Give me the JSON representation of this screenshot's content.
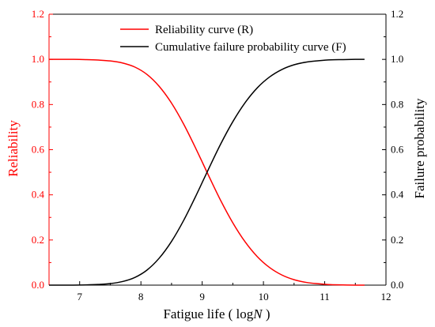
{
  "chart_data": {
    "type": "line",
    "title": "",
    "xlabel_prefix": "Fatigue life ( log",
    "xlabel_var": "N",
    "xlabel_suffix": " )",
    "ylabel_left": "Reliability",
    "ylabel_right": "Failure probability",
    "xlim": [
      6.5,
      12
    ],
    "ylim": [
      0,
      1.2
    ],
    "xticks": [
      7,
      8,
      9,
      10,
      11,
      12
    ],
    "xtick_labels": [
      "7",
      "8",
      "9",
      "10",
      "11",
      "12"
    ],
    "yticks": [
      0,
      0.2,
      0.4,
      0.6,
      0.8,
      1.0,
      1.2
    ],
    "ytick_labels": [
      "0.0",
      "0.2",
      "0.4",
      "0.6",
      "0.8",
      "1.0",
      "1.2"
    ],
    "legend_position": "top-right",
    "grid": false,
    "x": [
      6.5,
      6.7,
      6.9,
      7.1,
      7.3,
      7.5,
      7.7,
      7.9,
      8.1,
      8.3,
      8.5,
      8.7,
      8.9,
      9.1,
      9.3,
      9.5,
      9.7,
      9.9,
      10.1,
      10.3,
      10.5,
      10.7,
      10.9,
      11.1,
      11.3,
      11.5,
      11.65
    ],
    "series": [
      {
        "name": "Reliability curve (R)",
        "axis": "left",
        "color": "#ff0000",
        "values": [
          1.0,
          1.0,
          1.0,
          0.999,
          0.997,
          0.993,
          0.984,
          0.966,
          0.933,
          0.88,
          0.806,
          0.712,
          0.603,
          0.488,
          0.376,
          0.276,
          0.192,
          0.126,
          0.078,
          0.045,
          0.024,
          0.012,
          0.006,
          0.002,
          0.001,
          0.0,
          0.0
        ]
      },
      {
        "name": "Cumulative failure probability curve (F)",
        "axis": "right",
        "color": "#000000",
        "values": [
          0.0,
          0.0,
          0.0,
          0.001,
          0.003,
          0.007,
          0.016,
          0.034,
          0.067,
          0.12,
          0.194,
          0.288,
          0.397,
          0.512,
          0.624,
          0.724,
          0.808,
          0.874,
          0.922,
          0.955,
          0.976,
          0.988,
          0.994,
          0.998,
          0.999,
          1.0,
          1.0
        ]
      }
    ],
    "axis_colors": {
      "left": "#ff0000",
      "right": "#000000"
    }
  }
}
